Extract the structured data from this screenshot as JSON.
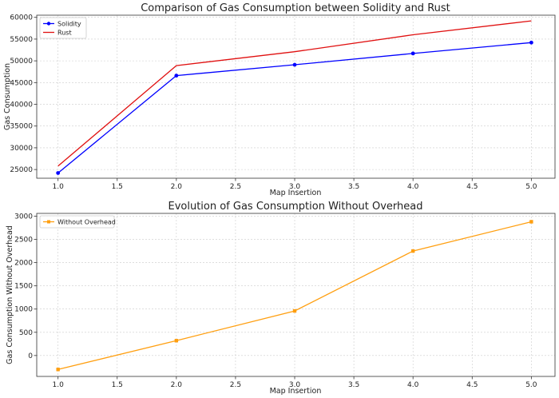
{
  "chart_data": [
    {
      "type": "line",
      "title": "Comparison of Gas Consumption between Solidity and Rust",
      "xlabel": "Map Insertion",
      "ylabel": "Gas Consumption",
      "x": [
        1.0,
        2.0,
        3.0,
        4.0,
        5.0
      ],
      "xticks": [
        "1.0",
        "1.5",
        "2.0",
        "2.5",
        "3.0",
        "3.5",
        "4.0",
        "4.5",
        "5.0"
      ],
      "yticks": [
        "25000",
        "30000",
        "35000",
        "40000",
        "45000",
        "50000",
        "55000",
        "60000"
      ],
      "xlim": [
        0.82,
        5.2
      ],
      "ylim": [
        23000,
        60500
      ],
      "grid": true,
      "legend": "upper-left",
      "series": [
        {
          "name": "Solidity",
          "values": [
            24200,
            46600,
            49100,
            51700,
            54200
          ],
          "color": "#0000ff",
          "marker": "circle"
        },
        {
          "name": "Rust",
          "values": [
            25800,
            48900,
            52100,
            56000,
            59200
          ],
          "color": "#e01010",
          "marker": "none"
        }
      ]
    },
    {
      "type": "line",
      "title": "Evolution of Gas Consumption Without Overhead",
      "xlabel": "Map Insertion",
      "ylabel": "Gas Consumption Without Overhead",
      "x": [
        1.0,
        2.0,
        3.0,
        4.0,
        5.0
      ],
      "xticks": [
        "1.0",
        "1.5",
        "2.0",
        "2.5",
        "3.0",
        "3.5",
        "4.0",
        "4.5",
        "5.0"
      ],
      "yticks": [
        "0",
        "500",
        "1000",
        "1500",
        "2000",
        "2500",
        "3000"
      ],
      "xlim": [
        0.82,
        5.2
      ],
      "ylim": [
        -450,
        3060
      ],
      "grid": true,
      "legend": "upper-left",
      "series": [
        {
          "name": "Without Overhead",
          "values": [
            -300,
            320,
            960,
            2250,
            2880
          ],
          "color": "#ff9f10",
          "marker": "square"
        }
      ]
    }
  ]
}
